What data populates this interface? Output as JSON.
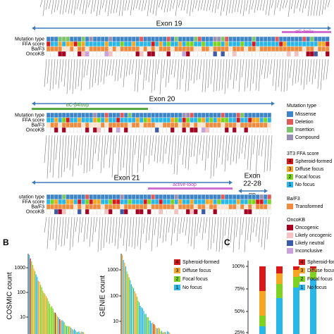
{
  "panel_a": {
    "row_labels": [
      "Mutation type",
      "FFA score",
      "Ba/F3",
      "OncoKB"
    ],
    "row_labels_3": [
      "utation type",
      "FFA score",
      "Ba/F3",
      "OncoKB"
    ],
    "exon19": "Exon 19",
    "helix": "αC-helix",
    "exon20": "Exon 20",
    "loop20": "αC-β4loop",
    "exon21": "Exon 21",
    "loop21": "active-loop",
    "exon22": [
      "Exon",
      "22-28"
    ],
    "rd": "RD"
  },
  "legend": {
    "mutation": {
      "title": "Mutation type",
      "items": [
        "Missense",
        "Deletion",
        "Insertion",
        "Compound"
      ]
    },
    "ffa": {
      "title": "3T3 FFA score",
      "items": [
        {
          "num": "4",
          "label": "Spheroid-formed"
        },
        {
          "num": "3",
          "label": "Diffuse focus"
        },
        {
          "num": "2",
          "label": "Focal focus"
        },
        {
          "num": "1",
          "label": "No focus"
        }
      ]
    },
    "baf3": {
      "title": "Ba/F3",
      "items": [
        "Transformed"
      ]
    },
    "oncokb": {
      "title": "OncoKB",
      "items": [
        "Oncogenic",
        "Likely oncogenic",
        "Likely neutral",
        "Inconclusive"
      ]
    }
  },
  "panel_b": {
    "label": "B",
    "ylabel1": "COSMIC count",
    "ticks1": [
      "1000",
      "100",
      "10"
    ],
    "ylabel2": "GENIE count",
    "ticks2": [
      "1000",
      "100",
      "10"
    ],
    "legend": [
      {
        "num": "4",
        "label": "Spheroid-formed"
      },
      {
        "num": "3",
        "label": "Diffuse focus"
      },
      {
        "num": "2",
        "label": "Focal focus"
      },
      {
        "num": "1",
        "label": "No focus"
      }
    ]
  },
  "panel_c": {
    "label": "C",
    "ticks": [
      "100%",
      "75%",
      "50%",
      "25%"
    ],
    "legend": [
      {
        "num": "4",
        "label": "Spheroid-formed"
      },
      {
        "num": "3",
        "label": "Diffuse focus"
      },
      {
        "num": "2",
        "label": "Focal focus"
      },
      {
        "num": "1",
        "label": "No focus"
      }
    ]
  }
}
